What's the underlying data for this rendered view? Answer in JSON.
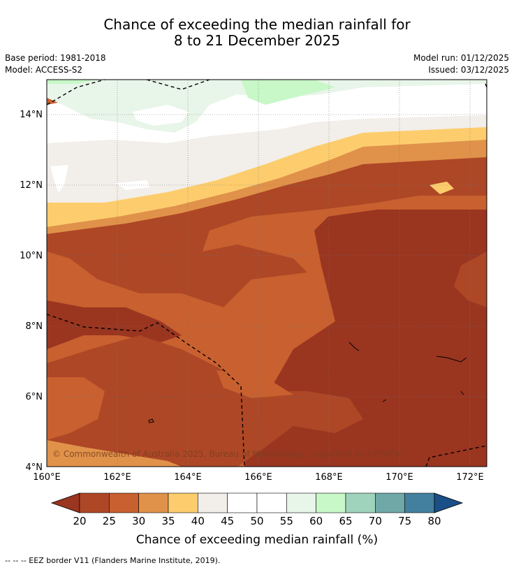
{
  "title": {
    "line1": "Chance of exceeding the median rainfall for",
    "line2": "8 to 21 December 2025"
  },
  "meta": {
    "base_period": "Base period: 1981-2018",
    "model": "Model: ACCESS-S2",
    "model_run": "Model run: 01/12/2025",
    "issued": "Issued: 03/12/2025"
  },
  "map": {
    "lat_labels": [
      "4°N",
      "6°N",
      "8°N",
      "10°N",
      "12°N",
      "14°N"
    ],
    "lon_labels": [
      "160°E",
      "162°E",
      "164°E",
      "166°E",
      "168°E",
      "170°E",
      "172°E"
    ],
    "copyright": "© Commonwealth of Australia 2025, Bureau of Meteorology, supported by COSPPac"
  },
  "colorbar": {
    "label": "Chance of exceeding median rainfall (%)",
    "ticks": [
      "20",
      "25",
      "30",
      "35",
      "40",
      "45",
      "50",
      "55",
      "60",
      "65",
      "70",
      "75",
      "80"
    ],
    "colors": [
      "#9a3520",
      "#ae4726",
      "#c8602f",
      "#e0924a",
      "#fdcd6d",
      "#f2eee9",
      "#ffffff",
      "#ffffff",
      "#e8f5e9",
      "#c8f7c8",
      "#9fd3bc",
      "#70a8a8",
      "#437f9e",
      "#1a4f87"
    ]
  },
  "footer": {
    "eez": "-- -- -- EEZ border V11 (Flanders Marine Institute, 2019)."
  }
}
